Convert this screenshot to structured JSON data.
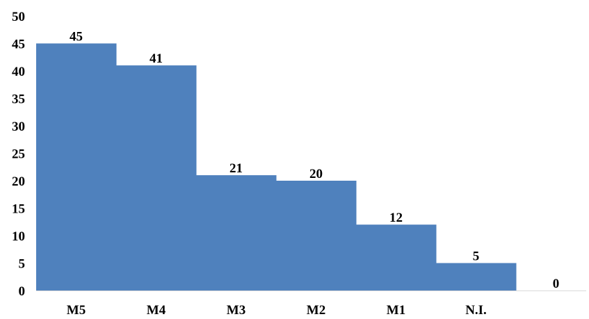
{
  "chart_data": {
    "type": "bar",
    "categories": [
      "M5",
      "M4",
      "M3",
      "M2",
      "M1",
      "N.I.",
      ""
    ],
    "values": [
      45,
      41,
      21,
      20,
      12,
      5,
      0
    ],
    "data_labels": [
      "45",
      "41",
      "21",
      "20",
      "12",
      "5",
      "0"
    ],
    "ylim": [
      0,
      50
    ],
    "yticks": [
      0,
      5,
      10,
      15,
      20,
      25,
      30,
      35,
      40,
      45,
      50
    ],
    "ytick_labels": [
      "0",
      "5",
      "10",
      "15",
      "20",
      "25",
      "30",
      "35",
      "40",
      "45",
      "50"
    ],
    "title": "",
    "xlabel": "",
    "ylabel": "",
    "grid": false,
    "legend": "none",
    "bar_color": "#4f81bd",
    "gap_between_bars": false
  }
}
